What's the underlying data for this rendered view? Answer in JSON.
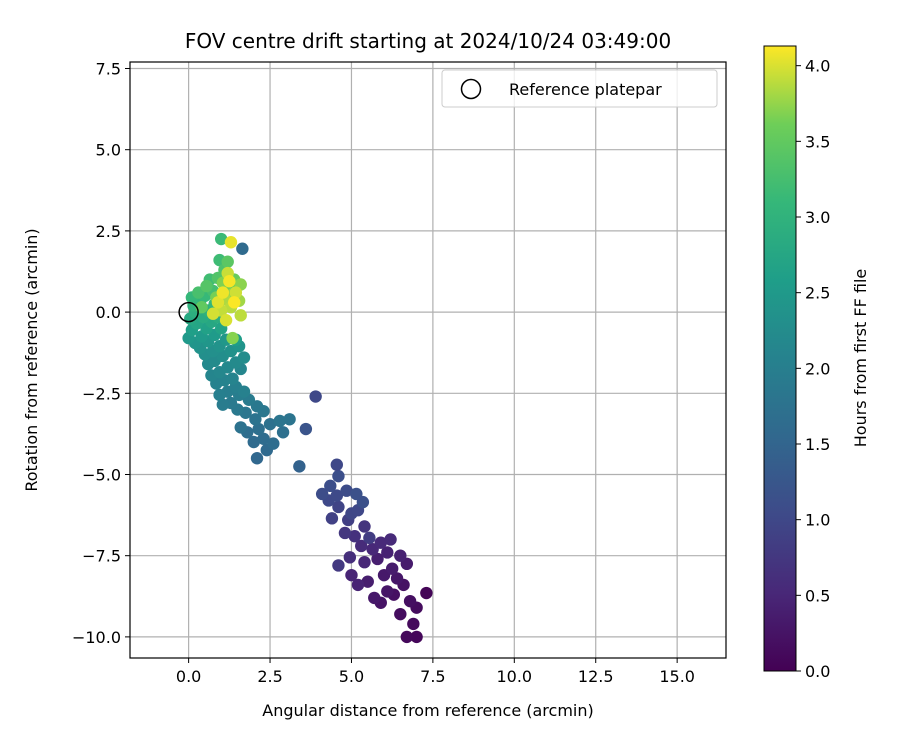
{
  "chart_data": {
    "type": "scatter",
    "title": "FOV centre drift starting at 2024/10/24 03:49:00",
    "xlabel": "Angular distance from reference (arcmin)",
    "ylabel": "Rotation from reference (arcmin)",
    "xlim": [
      -1.8,
      16.5
    ],
    "ylim": [
      -10.65,
      7.7
    ],
    "x_ticks": [
      0,
      2.5,
      5,
      7.5,
      10,
      12.5,
      15
    ],
    "x_tick_labels": [
      "0.0",
      "2.5",
      "5.0",
      "7.5",
      "10.0",
      "12.5",
      "15.0"
    ],
    "y_ticks": [
      7.5,
      5,
      2.5,
      0,
      -2.5,
      -5,
      -7.5,
      -10
    ],
    "y_tick_labels": [
      "7.5",
      "5.0",
      "2.5",
      "0.0",
      "−2.5",
      "−5.0",
      "−7.5",
      "−10.0"
    ],
    "grid": true,
    "legend": {
      "position": "top-right",
      "entries": [
        "Reference platepar"
      ]
    },
    "reference_point": {
      "x": 0,
      "y": 0,
      "label": "Reference platepar"
    },
    "colorbar": {
      "label": "Hours from first FF file",
      "range": [
        0,
        4.13
      ],
      "ticks": [
        0,
        0.5,
        1,
        1.5,
        2,
        2.5,
        3,
        3.5,
        4
      ],
      "tick_labels": [
        "0.0",
        "0.5",
        "1.0",
        "1.5",
        "2.0",
        "2.5",
        "3.0",
        "3.5",
        "4.0"
      ],
      "colormap": "viridis"
    },
    "points": [
      {
        "x": 7.3,
        "y": -8.65,
        "t": 0.05
      },
      {
        "x": 7.0,
        "y": -10.0,
        "t": 0.08
      },
      {
        "x": 6.7,
        "y": -10.0,
        "t": 0.1
      },
      {
        "x": 6.9,
        "y": -9.6,
        "t": 0.12
      },
      {
        "x": 7.0,
        "y": -9.1,
        "t": 0.14
      },
      {
        "x": 6.5,
        "y": -9.3,
        "t": 0.16
      },
      {
        "x": 6.8,
        "y": -8.9,
        "t": 0.18
      },
      {
        "x": 6.3,
        "y": -8.7,
        "t": 0.2
      },
      {
        "x": 6.6,
        "y": -8.4,
        "t": 0.22
      },
      {
        "x": 5.9,
        "y": -8.95,
        "t": 0.24
      },
      {
        "x": 6.1,
        "y": -8.6,
        "t": 0.26
      },
      {
        "x": 6.4,
        "y": -8.2,
        "t": 0.28
      },
      {
        "x": 5.7,
        "y": -8.8,
        "t": 0.3
      },
      {
        "x": 6.0,
        "y": -8.1,
        "t": 0.32
      },
      {
        "x": 6.7,
        "y": -7.75,
        "t": 0.34
      },
      {
        "x": 6.25,
        "y": -7.9,
        "t": 0.36
      },
      {
        "x": 5.5,
        "y": -8.3,
        "t": 0.38
      },
      {
        "x": 5.8,
        "y": -7.6,
        "t": 0.4
      },
      {
        "x": 6.5,
        "y": -7.5,
        "t": 0.42
      },
      {
        "x": 6.1,
        "y": -7.4,
        "t": 0.44
      },
      {
        "x": 5.2,
        "y": -8.4,
        "t": 0.46
      },
      {
        "x": 5.0,
        "y": -8.1,
        "t": 0.48
      },
      {
        "x": 5.4,
        "y": -7.7,
        "t": 0.5
      },
      {
        "x": 5.65,
        "y": -7.3,
        "t": 0.52
      },
      {
        "x": 5.9,
        "y": -7.1,
        "t": 0.54
      },
      {
        "x": 6.2,
        "y": -7.0,
        "t": 0.56
      },
      {
        "x": 5.3,
        "y": -7.2,
        "t": 0.58
      },
      {
        "x": 4.95,
        "y": -7.55,
        "t": 0.62
      },
      {
        "x": 5.1,
        "y": -6.9,
        "t": 0.66
      },
      {
        "x": 5.4,
        "y": -6.6,
        "t": 0.7
      },
      {
        "x": 4.8,
        "y": -6.8,
        "t": 0.74
      },
      {
        "x": 4.6,
        "y": -7.8,
        "t": 0.78
      },
      {
        "x": 5.55,
        "y": -6.95,
        "t": 0.82
      },
      {
        "x": 4.9,
        "y": -6.4,
        "t": 0.86
      },
      {
        "x": 4.4,
        "y": -6.35,
        "t": 0.9
      },
      {
        "x": 4.6,
        "y": -6.0,
        "t": 0.94
      },
      {
        "x": 5.0,
        "y": -6.2,
        "t": 0.98
      },
      {
        "x": 5.2,
        "y": -6.1,
        "t": 1.0
      },
      {
        "x": 4.3,
        "y": -5.8,
        "t": 1.02
      },
      {
        "x": 4.55,
        "y": -5.65,
        "t": 1.04
      },
      {
        "x": 4.85,
        "y": -5.5,
        "t": 1.06
      },
      {
        "x": 4.1,
        "y": -5.6,
        "t": 1.08
      },
      {
        "x": 4.35,
        "y": -5.35,
        "t": 1.1
      },
      {
        "x": 4.6,
        "y": -5.05,
        "t": 1.12
      },
      {
        "x": 5.35,
        "y": -5.85,
        "t": 1.14
      },
      {
        "x": 5.15,
        "y": -5.6,
        "t": 1.16
      },
      {
        "x": 4.55,
        "y": -4.7,
        "t": 1.0
      },
      {
        "x": 3.9,
        "y": -2.6,
        "t": 1.0
      },
      {
        "x": 3.6,
        "y": -3.6,
        "t": 1.2
      },
      {
        "x": 3.4,
        "y": -4.75,
        "t": 1.45
      },
      {
        "x": 2.1,
        "y": -4.5,
        "t": 1.55
      },
      {
        "x": 2.4,
        "y": -4.25,
        "t": 1.58
      },
      {
        "x": 2.0,
        "y": -4.0,
        "t": 1.6
      },
      {
        "x": 2.3,
        "y": -3.9,
        "t": 1.62
      },
      {
        "x": 2.6,
        "y": -4.05,
        "t": 1.64
      },
      {
        "x": 1.8,
        "y": -3.7,
        "t": 1.66
      },
      {
        "x": 2.15,
        "y": -3.6,
        "t": 1.68
      },
      {
        "x": 2.9,
        "y": -3.7,
        "t": 1.7
      },
      {
        "x": 2.5,
        "y": -3.45,
        "t": 1.72
      },
      {
        "x": 1.6,
        "y": -3.55,
        "t": 1.74
      },
      {
        "x": 2.05,
        "y": -3.3,
        "t": 1.76
      },
      {
        "x": 3.1,
        "y": -3.3,
        "t": 1.78
      },
      {
        "x": 2.8,
        "y": -3.35,
        "t": 1.8
      },
      {
        "x": 1.75,
        "y": -3.1,
        "t": 1.82
      },
      {
        "x": 2.3,
        "y": -3.05,
        "t": 1.84
      },
      {
        "x": 2.1,
        "y": -2.9,
        "t": 1.86
      },
      {
        "x": 1.5,
        "y": -3.0,
        "t": 1.88
      },
      {
        "x": 1.3,
        "y": -2.8,
        "t": 1.9
      },
      {
        "x": 1.85,
        "y": -2.7,
        "t": 1.92
      },
      {
        "x": 1.05,
        "y": -2.85,
        "t": 1.94
      },
      {
        "x": 1.55,
        "y": -2.55,
        "t": 1.96
      },
      {
        "x": 1.2,
        "y": -2.45,
        "t": 1.98
      },
      {
        "x": 0.95,
        "y": -2.55,
        "t": 2.0
      },
      {
        "x": 1.45,
        "y": -2.3,
        "t": 2.02
      },
      {
        "x": 1.7,
        "y": -2.45,
        "t": 2.04
      },
      {
        "x": 0.85,
        "y": -2.2,
        "t": 2.06
      },
      {
        "x": 1.1,
        "y": -2.1,
        "t": 2.08
      },
      {
        "x": 1.35,
        "y": -2.05,
        "t": 2.1
      },
      {
        "x": 0.7,
        "y": -1.95,
        "t": 2.12
      },
      {
        "x": 1.6,
        "y": -1.75,
        "t": 2.14
      },
      {
        "x": 0.95,
        "y": -1.85,
        "t": 2.16
      },
      {
        "x": 1.2,
        "y": -1.7,
        "t": 2.18
      },
      {
        "x": 0.6,
        "y": -1.6,
        "t": 2.2
      },
      {
        "x": 1.45,
        "y": -1.55,
        "t": 2.22
      },
      {
        "x": 0.8,
        "y": -1.5,
        "t": 2.24
      },
      {
        "x": 1.7,
        "y": -1.4,
        "t": 2.26
      },
      {
        "x": 1.05,
        "y": -1.35,
        "t": 2.28
      },
      {
        "x": 0.5,
        "y": -1.3,
        "t": 2.3
      },
      {
        "x": 0.75,
        "y": -1.2,
        "t": 2.32
      },
      {
        "x": 1.3,
        "y": -1.2,
        "t": 2.34
      },
      {
        "x": 0.35,
        "y": -1.1,
        "t": 2.36
      },
      {
        "x": 0.95,
        "y": -1.05,
        "t": 2.38
      },
      {
        "x": 1.55,
        "y": -1.05,
        "t": 2.4
      },
      {
        "x": 0.2,
        "y": -0.95,
        "t": 2.42
      },
      {
        "x": 0.6,
        "y": -0.9,
        "t": 2.44
      },
      {
        "x": 1.15,
        "y": -0.85,
        "t": 2.46
      },
      {
        "x": 0.0,
        "y": -0.8,
        "t": 2.48
      },
      {
        "x": 0.4,
        "y": -0.75,
        "t": 2.5
      },
      {
        "x": 0.8,
        "y": -0.7,
        "t": 2.52
      },
      {
        "x": 1.45,
        "y": -0.85,
        "t": 2.56
      },
      {
        "x": 0.1,
        "y": -0.55,
        "t": 2.6
      },
      {
        "x": 0.55,
        "y": -0.5,
        "t": 2.64
      },
      {
        "x": 1.0,
        "y": -0.5,
        "t": 2.68
      },
      {
        "x": 0.25,
        "y": -0.35,
        "t": 2.72
      },
      {
        "x": 0.7,
        "y": -0.3,
        "t": 2.76
      },
      {
        "x": 0.05,
        "y": -0.2,
        "t": 2.8
      },
      {
        "x": 0.45,
        "y": -0.15,
        "t": 2.84
      },
      {
        "x": 0.9,
        "y": -0.15,
        "t": 2.88
      },
      {
        "x": 0.2,
        "y": 0.0,
        "t": 2.92
      },
      {
        "x": 0.6,
        "y": 0.05,
        "t": 2.96
      },
      {
        "x": 0.15,
        "y": 0.2,
        "t": 3.0
      },
      {
        "x": 0.35,
        "y": 0.3,
        "t": 3.04
      },
      {
        "x": 0.8,
        "y": 0.25,
        "t": 3.08
      },
      {
        "x": 0.1,
        "y": 0.45,
        "t": 3.1
      },
      {
        "x": 0.5,
        "y": 0.5,
        "t": 3.12
      },
      {
        "x": 1.0,
        "y": 2.25,
        "t": 3.15
      },
      {
        "x": 0.95,
        "y": 1.6,
        "t": 3.18
      },
      {
        "x": 0.65,
        "y": 1.0,
        "t": 3.2
      },
      {
        "x": 0.75,
        "y": 0.65,
        "t": 3.24
      },
      {
        "x": 0.3,
        "y": 0.6,
        "t": 3.28
      },
      {
        "x": 1.1,
        "y": 1.3,
        "t": 3.32
      },
      {
        "x": 0.9,
        "y": 1.05,
        "t": 3.36
      },
      {
        "x": 0.55,
        "y": 0.8,
        "t": 3.4
      },
      {
        "x": 1.2,
        "y": 1.55,
        "t": 3.44
      },
      {
        "x": 0.4,
        "y": 0.15,
        "t": 3.5
      },
      {
        "x": 1.4,
        "y": 1.0,
        "t": 3.55
      },
      {
        "x": 1.25,
        "y": 0.75,
        "t": 3.6
      },
      {
        "x": 0.85,
        "y": 0.45,
        "t": 3.64
      },
      {
        "x": 1.05,
        "y": 0.9,
        "t": 3.68
      },
      {
        "x": 1.6,
        "y": 0.85,
        "t": 3.72
      },
      {
        "x": 1.35,
        "y": 0.55,
        "t": 3.76
      },
      {
        "x": 1.55,
        "y": 0.35,
        "t": 3.8
      },
      {
        "x": 1.1,
        "y": 0.4,
        "t": 3.84
      },
      {
        "x": 1.3,
        "y": 0.15,
        "t": 3.88
      },
      {
        "x": 1.6,
        "y": -0.1,
        "t": 3.9
      },
      {
        "x": 1.0,
        "y": 0.05,
        "t": 3.92
      },
      {
        "x": 1.2,
        "y": 1.2,
        "t": 3.94
      },
      {
        "x": 1.45,
        "y": 0.6,
        "t": 3.96
      },
      {
        "x": 0.75,
        "y": -0.05,
        "t": 3.98
      },
      {
        "x": 1.15,
        "y": -0.25,
        "t": 4.0
      },
      {
        "x": 0.9,
        "y": 0.3,
        "t": 4.02
      },
      {
        "x": 1.3,
        "y": 2.15,
        "t": 4.05
      },
      {
        "x": 1.05,
        "y": 0.6,
        "t": 4.08
      },
      {
        "x": 1.25,
        "y": 0.95,
        "t": 4.1
      },
      {
        "x": 1.4,
        "y": 0.3,
        "t": 4.12
      },
      {
        "x": 1.65,
        "y": 1.95,
        "t": 1.6
      },
      {
        "x": 1.35,
        "y": -0.8,
        "t": 3.7
      }
    ]
  }
}
